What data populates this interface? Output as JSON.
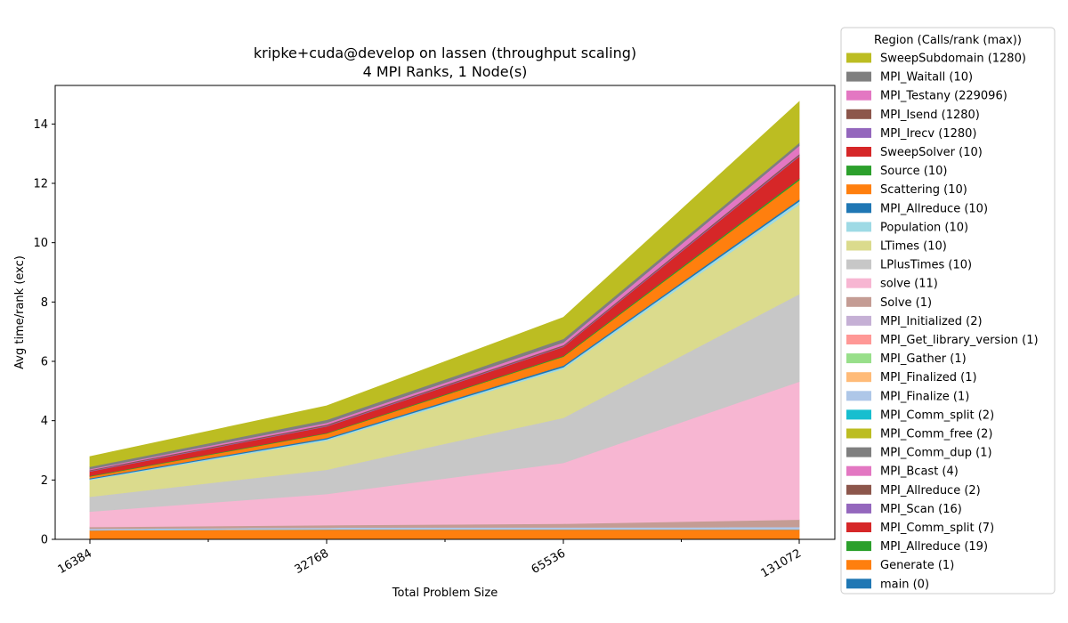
{
  "chart_data": {
    "type": "area",
    "title": [
      "kripke+cuda@develop on lassen (throughput scaling)",
      "4 MPI Ranks, 1 Node(s)"
    ],
    "xlabel": "Total Problem Size",
    "ylabel": "Avg time/rank (exc)",
    "categories": [
      "16384",
      "32768",
      "65536",
      "131072"
    ],
    "ylim": [
      0,
      15.3
    ],
    "yticks": [
      0,
      2,
      4,
      6,
      8,
      10,
      12,
      14
    ],
    "stacking": "bottom-to-top in series order (main first)",
    "legend": {
      "title": "Region (Calls/rank (max))",
      "placement": "outside-right"
    },
    "series": [
      {
        "name": "main (0)",
        "color": "#1f77b4",
        "values": [
          0.01,
          0.01,
          0.01,
          0.01
        ]
      },
      {
        "name": "Generate (1)",
        "color": "#ff7f0e",
        "values": [
          0.3,
          0.33,
          0.33,
          0.33
        ]
      },
      {
        "name": "MPI_Allreduce (19)",
        "color": "#2ca02c",
        "values": [
          0.0,
          0.0,
          0.0,
          0.0
        ]
      },
      {
        "name": "MPI_Comm_split (7)",
        "color": "#d62728",
        "values": [
          0.0,
          0.0,
          0.0,
          0.0
        ]
      },
      {
        "name": "MPI_Scan (16)",
        "color": "#9467bd",
        "values": [
          0.0,
          0.0,
          0.0,
          0.0
        ]
      },
      {
        "name": "MPI_Allreduce (2)",
        "color": "#8c564b",
        "values": [
          0.0,
          0.0,
          0.0,
          0.0
        ]
      },
      {
        "name": "MPI_Bcast (4)",
        "color": "#e377c2",
        "values": [
          0.0,
          0.0,
          0.0,
          0.0
        ]
      },
      {
        "name": "MPI_Comm_dup (1)",
        "color": "#7f7f7f",
        "values": [
          0.0,
          0.0,
          0.0,
          0.0
        ]
      },
      {
        "name": "MPI_Comm_free (2)",
        "color": "#bcbd22",
        "values": [
          0.0,
          0.0,
          0.0,
          0.0
        ]
      },
      {
        "name": "MPI_Comm_split (2)",
        "color": "#17becf",
        "values": [
          0.0,
          0.0,
          0.0,
          0.0
        ]
      },
      {
        "name": "MPI_Finalize (1)",
        "color": "#aec7e8",
        "values": [
          0.05,
          0.06,
          0.07,
          0.08
        ]
      },
      {
        "name": "MPI_Finalized (1)",
        "color": "#ffbb78",
        "values": [
          0.0,
          0.0,
          0.0,
          0.0
        ]
      },
      {
        "name": "MPI_Gather (1)",
        "color": "#98df8a",
        "values": [
          0.0,
          0.0,
          0.0,
          0.0
        ]
      },
      {
        "name": "MPI_Get_library_version (1)",
        "color": "#ff9896",
        "values": [
          0.0,
          0.0,
          0.0,
          0.0
        ]
      },
      {
        "name": "MPI_Initialized (2)",
        "color": "#c5b0d5",
        "values": [
          0.0,
          0.0,
          0.0,
          0.0
        ]
      },
      {
        "name": "Solve (1)",
        "color": "#c49c94",
        "values": [
          0.06,
          0.08,
          0.12,
          0.25
        ]
      },
      {
        "name": "solve (11)",
        "color": "#f7b6d2",
        "values": [
          0.52,
          1.05,
          2.05,
          4.65
        ]
      },
      {
        "name": "LPlusTimes (10)",
        "color": "#c7c7c7",
        "values": [
          0.5,
          0.82,
          1.52,
          2.95
        ]
      },
      {
        "name": "LTimes (10)",
        "color": "#dbdb8d",
        "values": [
          0.56,
          0.98,
          1.65,
          3.02
        ]
      },
      {
        "name": "Population (10)",
        "color": "#9edae5",
        "values": [
          0.03,
          0.05,
          0.06,
          0.11
        ]
      },
      {
        "name": "MPI_Allreduce (10)",
        "color": "#1f77b4",
        "values": [
          0.03,
          0.04,
          0.05,
          0.06
        ]
      },
      {
        "name": "Scattering (10)",
        "color": "#ff7f0e",
        "values": [
          0.06,
          0.15,
          0.3,
          0.65
        ]
      },
      {
        "name": "Source (10)",
        "color": "#2ca02c",
        "values": [
          0.02,
          0.02,
          0.03,
          0.05
        ]
      },
      {
        "name": "SweepSolver (10)",
        "color": "#d62728",
        "values": [
          0.15,
          0.22,
          0.3,
          0.75
        ]
      },
      {
        "name": "MPI_Irecv (1280)",
        "color": "#9467bd",
        "values": [
          0.02,
          0.02,
          0.02,
          0.03
        ]
      },
      {
        "name": "MPI_Isend (1280)",
        "color": "#8c564b",
        "values": [
          0.03,
          0.04,
          0.04,
          0.05
        ]
      },
      {
        "name": "MPI_Testany (229096)",
        "color": "#e377c2",
        "values": [
          0.03,
          0.06,
          0.09,
          0.28
        ]
      },
      {
        "name": "MPI_Waitall (10)",
        "color": "#7f7f7f",
        "values": [
          0.08,
          0.1,
          0.12,
          0.1
        ]
      },
      {
        "name": "SweepSubdomain (1280)",
        "color": "#bcbd22",
        "values": [
          0.34,
          0.47,
          0.72,
          1.38
        ]
      }
    ]
  }
}
